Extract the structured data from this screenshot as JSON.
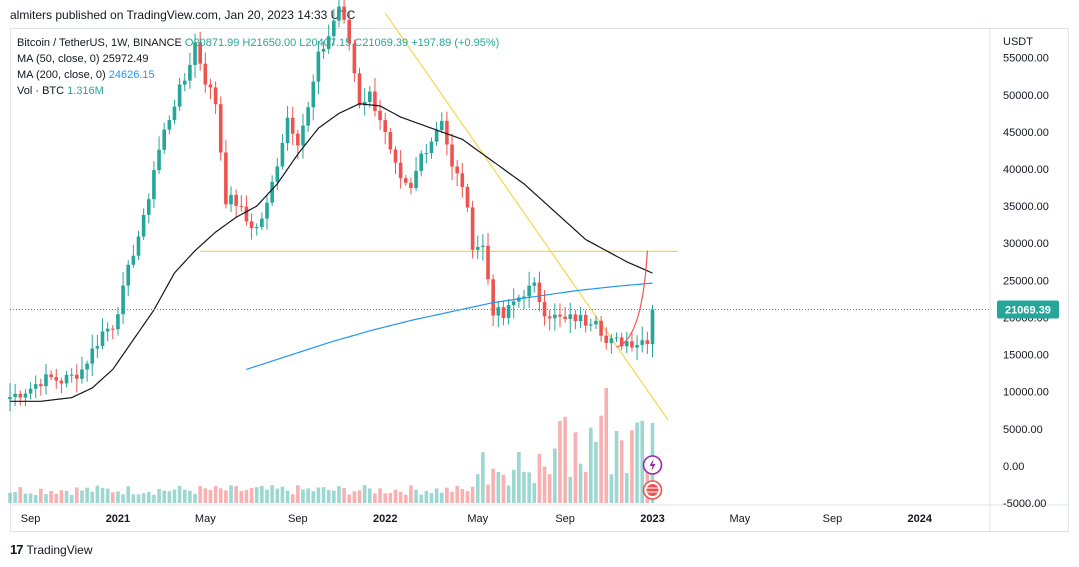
{
  "header": {
    "published": "almiters published on TradingView.com, Jan 20, 2023 14:33 UTC"
  },
  "footer": {
    "brand": "TradingView",
    "logo": "tradingview-logo-icon"
  },
  "legend": {
    "symbol": "Bitcoin / TetherUS, 1W, BINANCE",
    "ohlc": "O20871.99  H21650.00  L20407.15  C21069.39",
    "change": "+197.89 (+0.95%)",
    "ma50_label": "MA (50, close, 0)",
    "ma50_value": "25972.49",
    "ma200_label": "MA (200, close, 0)",
    "ma200_value": "24626.15",
    "vol_label": "Vol · BTC",
    "vol_value": "1.316M"
  },
  "chart_data": {
    "type": "candlestick",
    "currency": "USDT",
    "last_price_label": "21069.39",
    "y_ticks": [
      "55000.00",
      "50000.00",
      "45000.00",
      "40000.00",
      "35000.00",
      "30000.00",
      "25000.00",
      "20000.00",
      "15000.00",
      "10000.00",
      "5000.00",
      "0.00",
      "-5000.00"
    ],
    "y_tick_values": [
      55000,
      50000,
      45000,
      40000,
      35000,
      30000,
      25000,
      20000,
      15000,
      10000,
      5000,
      0,
      -5000
    ],
    "ylim": [
      -5000,
      59000
    ],
    "x_ticks": [
      {
        "label": "Sep",
        "week": 4
      },
      {
        "label": "2021",
        "week": 21
      },
      {
        "label": "May",
        "week": 38
      },
      {
        "label": "Sep",
        "week": 56
      },
      {
        "label": "2022",
        "week": 73
      },
      {
        "label": "May",
        "week": 91
      },
      {
        "label": "Sep",
        "week": 108
      },
      {
        "label": "2023",
        "week": 125
      },
      {
        "label": "May",
        "week": 142
      },
      {
        "label": "Sep",
        "week": 160
      },
      {
        "label": "2024",
        "week": 177
      }
    ],
    "weeks_total": 200,
    "close_anchors": [
      [
        0,
        9300
      ],
      [
        4,
        10500
      ],
      [
        6,
        11500
      ],
      [
        8,
        11800
      ],
      [
        10,
        11500
      ],
      [
        12,
        12000
      ],
      [
        14,
        13000
      ],
      [
        16,
        15500
      ],
      [
        18,
        18000
      ],
      [
        20,
        19000
      ],
      [
        22,
        23500
      ],
      [
        24,
        29000
      ],
      [
        26,
        33000
      ],
      [
        28,
        40000
      ],
      [
        30,
        45000
      ],
      [
        32,
        49000
      ],
      [
        34,
        52000
      ],
      [
        36,
        57000
      ],
      [
        38,
        52000
      ],
      [
        40,
        49000
      ],
      [
        42,
        36000
      ],
      [
        44,
        35500
      ],
      [
        46,
        33000
      ],
      [
        48,
        32000
      ],
      [
        50,
        35000
      ],
      [
        52,
        41000
      ],
      [
        54,
        47000
      ],
      [
        56,
        44000
      ],
      [
        58,
        48000
      ],
      [
        60,
        55000
      ],
      [
        62,
        58000
      ],
      [
        64,
        62000
      ],
      [
        66,
        57000
      ],
      [
        68,
        49000
      ],
      [
        70,
        50000
      ],
      [
        72,
        47000
      ],
      [
        74,
        42000
      ],
      [
        76,
        38000
      ],
      [
        78,
        37000
      ],
      [
        80,
        42000
      ],
      [
        82,
        44000
      ],
      [
        84,
        47000
      ],
      [
        86,
        40000
      ],
      [
        88,
        38000
      ],
      [
        90,
        30000
      ],
      [
        92,
        29500
      ],
      [
        94,
        21000
      ],
      [
        96,
        20000
      ],
      [
        98,
        22000
      ],
      [
        100,
        23500
      ],
      [
        102,
        24000
      ],
      [
        104,
        21000
      ],
      [
        106,
        20000
      ],
      [
        108,
        19500
      ],
      [
        110,
        20000
      ],
      [
        112,
        19500
      ],
      [
        114,
        20300
      ],
      [
        116,
        16500
      ],
      [
        118,
        16700
      ],
      [
        120,
        16800
      ],
      [
        122,
        16700
      ],
      [
        124,
        17200
      ],
      [
        125,
        21069.39
      ]
    ],
    "ma50_anchors": [
      [
        0,
        8700
      ],
      [
        6,
        8700
      ],
      [
        12,
        9200
      ],
      [
        16,
        10500
      ],
      [
        20,
        13000
      ],
      [
        24,
        17000
      ],
      [
        28,
        21000
      ],
      [
        32,
        26000
      ],
      [
        36,
        29000
      ],
      [
        40,
        31500
      ],
      [
        44,
        33500
      ],
      [
        48,
        35000
      ],
      [
        52,
        38000
      ],
      [
        56,
        42000
      ],
      [
        60,
        45500
      ],
      [
        64,
        47500
      ],
      [
        68,
        48800
      ],
      [
        72,
        48500
      ],
      [
        76,
        47000
      ],
      [
        80,
        46000
      ],
      [
        84,
        45000
      ],
      [
        88,
        44000
      ],
      [
        92,
        42000
      ],
      [
        96,
        40000
      ],
      [
        100,
        38000
      ],
      [
        104,
        35500
      ],
      [
        108,
        33000
      ],
      [
        112,
        30500
      ],
      [
        116,
        29000
      ],
      [
        120,
        27500
      ],
      [
        125,
        25972.49
      ]
    ],
    "ma200_anchors": [
      [
        46,
        13000
      ],
      [
        54,
        14800
      ],
      [
        62,
        16600
      ],
      [
        70,
        18200
      ],
      [
        78,
        19600
      ],
      [
        86,
        20800
      ],
      [
        94,
        22000
      ],
      [
        102,
        22800
      ],
      [
        110,
        23600
      ],
      [
        118,
        24200
      ],
      [
        125,
        24626.15
      ]
    ],
    "trendline_horizontal": {
      "start_week": 37,
      "end_week": 130,
      "price": 28900
    },
    "trendline_descending": [
      [
        73,
        61000
      ],
      [
        128,
        6200
      ]
    ],
    "volume_scale_note": "volume bars plotted at bottom of pane",
    "colors": {
      "up": "#26a69a",
      "down": "#ef5350",
      "ma50": "#131722",
      "ma200": "#2196f3",
      "trend": "#f7d64a",
      "bg": "#ffffff",
      "price_tag": "#26a69a"
    }
  }
}
